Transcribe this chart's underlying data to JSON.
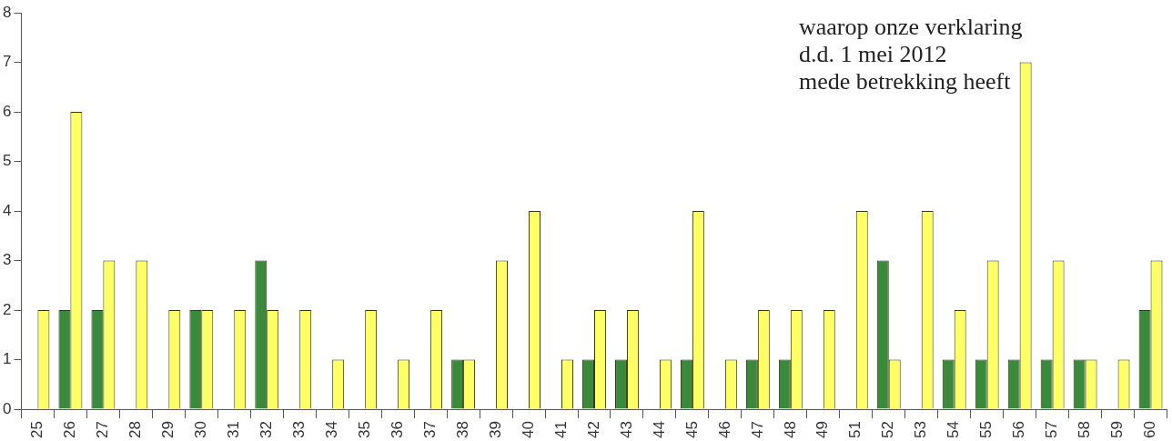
{
  "chart_data": {
    "type": "bar",
    "categories": [
      "25",
      "26",
      "27",
      "28",
      "29",
      "30",
      "31",
      "32",
      "33",
      "34",
      "35",
      "36",
      "37",
      "38",
      "39",
      "40",
      "41",
      "42",
      "43",
      "44",
      "45",
      "46",
      "47",
      "48",
      "49",
      "51",
      "52",
      "53",
      "54",
      "55",
      "56",
      "57",
      "58",
      "59",
      "60"
    ],
    "series": [
      {
        "color": "#3a8a3c",
        "values": [
          0,
          2,
          2,
          0,
          0,
          2,
          0,
          3,
          0,
          0,
          0,
          0,
          0,
          1,
          0,
          0,
          0,
          1,
          1,
          0,
          1,
          0,
          1,
          1,
          0,
          0,
          3,
          0,
          1,
          1,
          1,
          1,
          1,
          0,
          2
        ]
      },
      {
        "color": "#ffff66",
        "values": [
          2,
          6,
          3,
          3,
          2,
          2,
          2,
          2,
          2,
          1,
          2,
          1,
          2,
          1,
          3,
          4,
          1,
          2,
          2,
          1,
          4,
          1,
          2,
          2,
          2,
          4,
          1,
          4,
          2,
          3,
          7,
          3,
          1,
          1,
          3
        ]
      }
    ],
    "ylim": [
      0,
      8
    ],
    "yticks": [
      0,
      1,
      2,
      3,
      4,
      5,
      6,
      7,
      8
    ],
    "grid": false,
    "legend": false,
    "annotations": [
      "waarop onze verklaring\nd.d. 1 mei 2012\nmede betrekking heeft"
    ]
  }
}
